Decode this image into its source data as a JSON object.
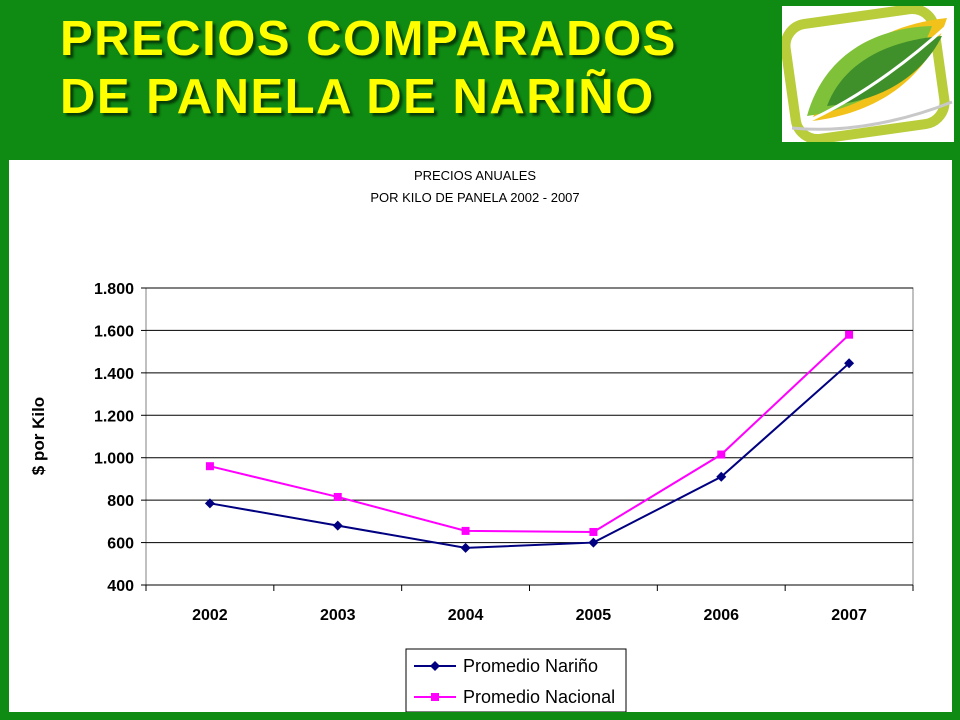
{
  "slide": {
    "title_line1": "PRECIOS COMPARADOS",
    "title_line2": "DE PANELA DE NARIÑO",
    "background_color": "#0f8a12",
    "title_color": "#ffff00",
    "logo_icon": "green-leaf-logo-icon"
  },
  "chart_data": {
    "type": "line",
    "title_line1": "PRECIOS ANUALES",
    "title_line2": "POR KILO DE PANELA 2002 - 2007",
    "xlabel": "",
    "ylabel": "$ por Kilo",
    "categories": [
      "2002",
      "2003",
      "2004",
      "2005",
      "2006",
      "2007"
    ],
    "ylim": [
      400,
      1800
    ],
    "yticks": [
      400,
      600,
      800,
      1000,
      1200,
      1400,
      1600,
      1800
    ],
    "ytick_labels": [
      "400",
      "600",
      "800",
      "1.000",
      "1.200",
      "1.400",
      "1.600",
      "1.800"
    ],
    "grid": "horizontal",
    "legend_position": "bottom",
    "series": [
      {
        "name": "Promedio Nariño",
        "color": "#000080",
        "marker": "diamond",
        "values": [
          785,
          680,
          575,
          600,
          910,
          1445
        ]
      },
      {
        "name": "Promedio Nacional",
        "color": "#ff00ff",
        "marker": "square",
        "values": [
          960,
          815,
          655,
          650,
          1015,
          1580
        ]
      }
    ]
  }
}
